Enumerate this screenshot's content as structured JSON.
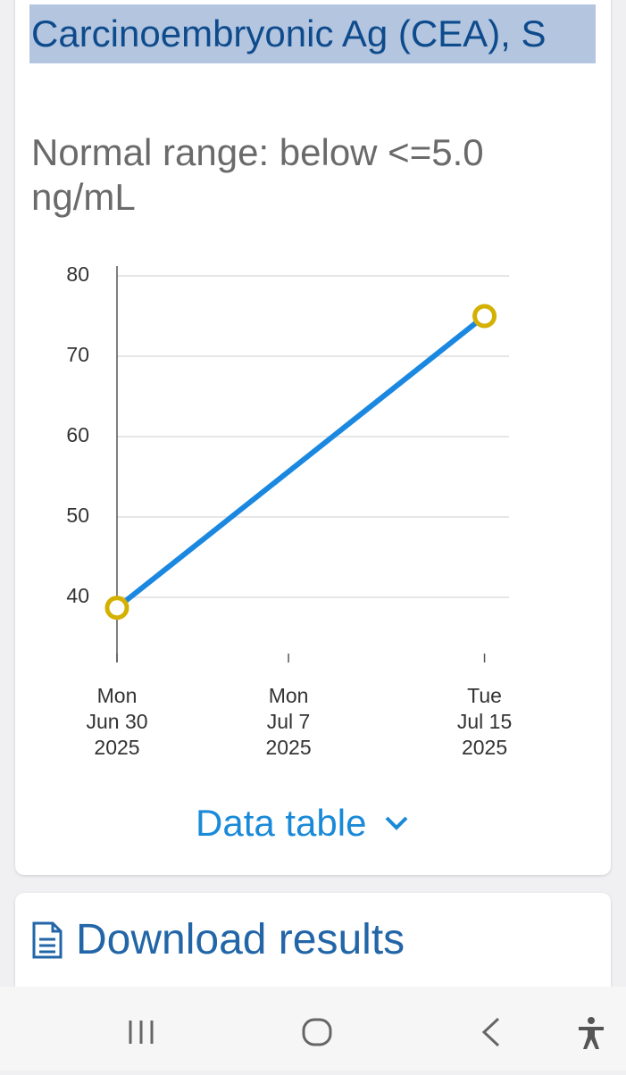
{
  "header": {
    "title": "Carcinoembryonic Ag (CEA), S",
    "subtitle": "Normal range: below <=5.0 ng/mL"
  },
  "chart_data": {
    "type": "line",
    "x": [
      "2025-06-30",
      "2025-07-15"
    ],
    "values": [
      38.7,
      75
    ],
    "color": "#1a88e0",
    "marker_color": "#d4b000",
    "xlim": [
      "2025-06-30",
      "2025-07-16"
    ],
    "xticks": [
      {
        "value": "2025-06-30",
        "label": [
          "Mon",
          "Jun 30",
          "2025"
        ]
      },
      {
        "value": "2025-07-07",
        "label": [
          "Mon",
          "Jul 7",
          "2025"
        ]
      },
      {
        "value": "2025-07-15",
        "label": [
          "Tue",
          "Jul 15",
          "2025"
        ]
      }
    ],
    "ylim": [
      33,
      80
    ],
    "yticks": [
      40,
      50,
      60,
      70,
      80
    ],
    "grid": true
  },
  "data_table_link": "Data table",
  "download_link": "Download results"
}
